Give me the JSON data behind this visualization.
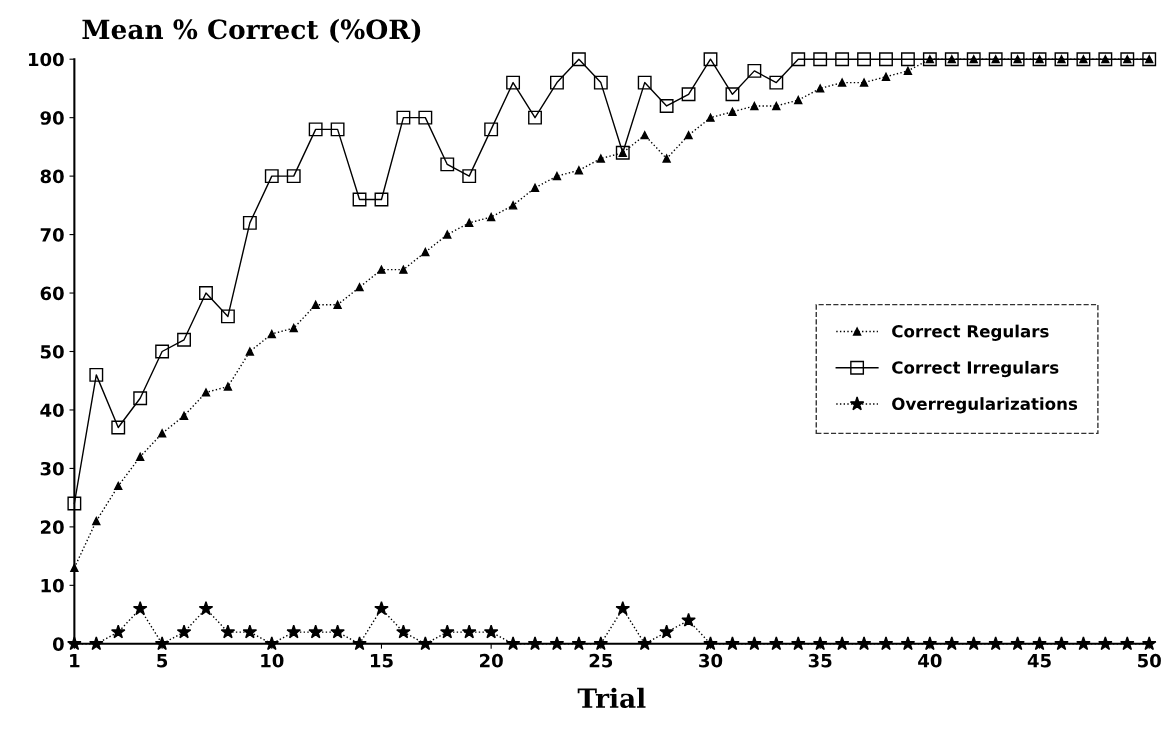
{
  "chart_data": {
    "type": "line",
    "ylabel": "Mean % Correct (%OR)",
    "xlabel": "Trial",
    "x": [
      1,
      2,
      3,
      4,
      5,
      6,
      7,
      8,
      9,
      10,
      11,
      12,
      13,
      14,
      15,
      16,
      17,
      18,
      19,
      20,
      21,
      22,
      23,
      24,
      25,
      26,
      27,
      28,
      29,
      30,
      31,
      32,
      33,
      34,
      35,
      36,
      37,
      38,
      39,
      40,
      41,
      42,
      43,
      44,
      45,
      46,
      47,
      48,
      49,
      50
    ],
    "series": [
      {
        "name": "Correct Regulars",
        "color": "#000000",
        "marker": "triangle",
        "line_style": "dotted",
        "values": [
          13,
          21,
          27,
          32,
          36,
          39,
          43,
          44,
          50,
          53,
          54,
          58,
          58,
          61,
          64,
          64,
          67,
          70,
          72,
          73,
          75,
          78,
          80,
          81,
          83,
          84,
          87,
          83,
          87,
          90,
          91,
          92,
          92,
          93,
          95,
          96,
          96,
          97,
          98,
          100,
          100,
          100,
          100,
          100,
          100,
          100,
          100,
          100,
          100,
          100
        ]
      },
      {
        "name": "Correct Irregulars",
        "color": "#000000",
        "marker": "square",
        "line_style": "solid",
        "values": [
          24,
          46,
          37,
          42,
          50,
          52,
          60,
          56,
          72,
          80,
          80,
          88,
          88,
          76,
          76,
          90,
          90,
          82,
          80,
          88,
          96,
          90,
          96,
          100,
          96,
          84,
          96,
          92,
          94,
          100,
          94,
          98,
          96,
          100,
          100,
          100,
          100,
          100,
          100,
          100,
          100,
          100,
          100,
          100,
          100,
          100,
          100,
          100,
          100,
          100
        ]
      },
      {
        "name": "Overregularizations",
        "color": "#000000",
        "marker": "star",
        "line_style": "dotted",
        "values": [
          0,
          0,
          2,
          6,
          0,
          2,
          6,
          2,
          2,
          0,
          2,
          2,
          2,
          0,
          6,
          2,
          0,
          2,
          2,
          2,
          0,
          0,
          0,
          0,
          0,
          6,
          0,
          2,
          4,
          0,
          0,
          0,
          0,
          0,
          0,
          0,
          0,
          0,
          0,
          0,
          0,
          0,
          0,
          0,
          0,
          0,
          0,
          0,
          0,
          0
        ]
      }
    ],
    "xlim": [
      1,
      50
    ],
    "ylim": [
      0,
      100
    ],
    "xticks": [
      1,
      5,
      10,
      15,
      20,
      25,
      30,
      35,
      40,
      45,
      50
    ],
    "yticks": [
      0,
      10,
      20,
      30,
      40,
      50,
      60,
      70,
      80,
      90,
      100
    ],
    "grid": false,
    "legend": "center right"
  }
}
